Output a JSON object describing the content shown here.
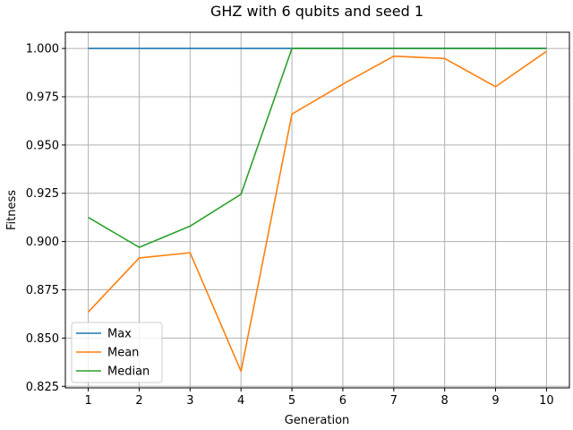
{
  "chart_data": {
    "type": "line",
    "title": "GHZ with 6 qubits and seed 1",
    "xlabel": "Generation",
    "ylabel": "Fitness",
    "x": [
      1,
      2,
      3,
      4,
      5,
      6,
      7,
      8,
      9,
      10
    ],
    "xlim": [
      0.55,
      10.45
    ],
    "ylim": [
      0.8242,
      1.0084
    ],
    "xticks": [
      "1",
      "2",
      "3",
      "4",
      "5",
      "6",
      "7",
      "8",
      "9",
      "10"
    ],
    "yticks": [
      "0.825",
      "0.850",
      "0.875",
      "0.900",
      "0.925",
      "0.950",
      "0.975",
      "1.000"
    ],
    "grid": true,
    "legend": "lower-left",
    "series": [
      {
        "name": "Max",
        "color": "#1f77b4",
        "values": [
          1.0,
          1.0,
          1.0,
          1.0,
          1.0,
          1.0,
          1.0,
          1.0,
          1.0,
          1.0
        ]
      },
      {
        "name": "Mean",
        "color": "#ff7f0e",
        "values": [
          0.8635,
          0.8915,
          0.8942,
          0.8328,
          0.966,
          0.9815,
          0.996,
          0.9948,
          0.9802,
          0.9985
        ]
      },
      {
        "name": "Median",
        "color": "#2ca02c",
        "values": [
          0.9125,
          0.897,
          0.908,
          0.9245,
          1.0,
          1.0,
          1.0,
          1.0,
          1.0,
          1.0
        ]
      }
    ]
  }
}
